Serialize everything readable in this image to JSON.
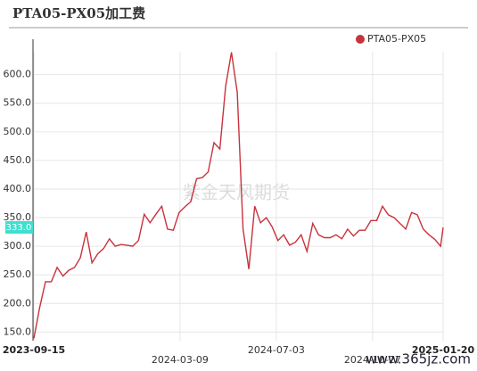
{
  "chart_data": {
    "type": "line",
    "title": "PTA05-PX05加工费",
    "watermark": "紫金天风期货",
    "site_mark": "www.365jz.com",
    "crosshair_label": "333.0",
    "legend": "top-right",
    "grid": true,
    "x": [
      "2023-09-15",
      "2023-09-22",
      "2023-09-29",
      "2023-10-06",
      "2023-10-13",
      "2023-10-20",
      "2023-10-27",
      "2023-11-03",
      "2023-11-10",
      "2023-11-17",
      "2023-11-24",
      "2023-12-01",
      "2023-12-08",
      "2023-12-15",
      "2023-12-22",
      "2023-12-29",
      "2024-01-05",
      "2024-01-12",
      "2024-01-19",
      "2024-01-26",
      "2024-02-02",
      "2024-02-09",
      "2024-02-16",
      "2024-02-23",
      "2024-03-01",
      "2024-03-08",
      "2024-03-15",
      "2024-03-22",
      "2024-03-29",
      "2024-04-05",
      "2024-04-12",
      "2024-04-19",
      "2024-04-26",
      "2024-05-03",
      "2024-05-10",
      "2024-05-17",
      "2024-05-24",
      "2024-05-31",
      "2024-06-07",
      "2024-06-14",
      "2024-06-21",
      "2024-06-28",
      "2024-07-05",
      "2024-07-12",
      "2024-07-19",
      "2024-07-26",
      "2024-08-02",
      "2024-08-09",
      "2024-08-16",
      "2024-08-23",
      "2024-08-30",
      "2024-09-06",
      "2024-09-13",
      "2024-09-20",
      "2024-09-27",
      "2024-10-04",
      "2024-10-11",
      "2024-10-18",
      "2024-10-25",
      "2024-11-01",
      "2024-11-08",
      "2024-11-15",
      "2024-11-22",
      "2024-11-29",
      "2024-12-06",
      "2024-12-13",
      "2024-12-20",
      "2024-12-27",
      "2025-01-03",
      "2025-01-10",
      "2025-01-17",
      "2025-01-20"
    ],
    "series": [
      {
        "name": "PTA05-PX05",
        "color": "#c8323c",
        "values": [
          139,
          193,
          238,
          238,
          263,
          248,
          258,
          263,
          280,
          325,
          271,
          287,
          296,
          313,
          300,
          303,
          302,
          300,
          310,
          356,
          341,
          356,
          370,
          330,
          328,
          359,
          369,
          378,
          418,
          420,
          430,
          481,
          470,
          580,
          639,
          569,
          330,
          260,
          370,
          341,
          350,
          334,
          310,
          320,
          302,
          307,
          320,
          291,
          340,
          320,
          315,
          315,
          320,
          313,
          330,
          318,
          328,
          328,
          345,
          345,
          370,
          355,
          350,
          340,
          330,
          359,
          355,
          330,
          320,
          312,
          300,
          333
        ]
      }
    ],
    "xlim": [
      "2023-09-15",
      "2025-01-20"
    ],
    "xticks": [
      "2023-09-15",
      "2024-03-09",
      "2024-07-03",
      "2024-10-27",
      "2025-01-20"
    ],
    "ylim": [
      135,
      640
    ],
    "yticks": [
      {
        "value": 150,
        "label": "150.0"
      },
      {
        "value": 200,
        "label": "200.0"
      },
      {
        "value": 250,
        "label": "250.0"
      },
      {
        "value": 300,
        "label": "300.0"
      },
      {
        "value": 350,
        "label": "350.0"
      },
      {
        "value": 400,
        "label": "400.0"
      },
      {
        "value": 450,
        "label": "450.0"
      },
      {
        "value": 500,
        "label": "500.0"
      },
      {
        "value": 550,
        "label": "550.0"
      },
      {
        "value": 600,
        "label": "600.0"
      }
    ]
  }
}
